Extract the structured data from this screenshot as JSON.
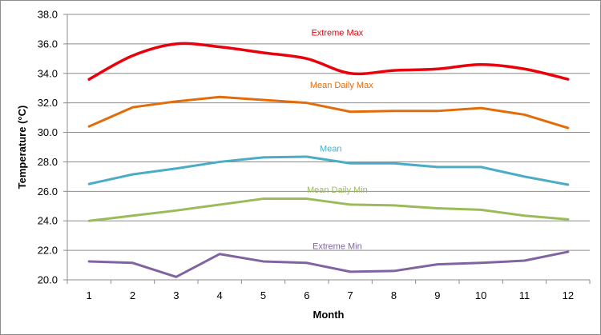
{
  "chart_data": {
    "type": "line",
    "title": "",
    "xlabel": "Month",
    "ylabel": "Temperature (°C)",
    "categories": [
      "1",
      "2",
      "3",
      "4",
      "5",
      "6",
      "7",
      "8",
      "9",
      "10",
      "11",
      "12"
    ],
    "ylim": [
      20.0,
      38.0
    ],
    "yticks": [
      "20.0",
      "22.0",
      "24.0",
      "26.0",
      "28.0",
      "30.0",
      "32.0",
      "34.0",
      "36.0",
      "38.0"
    ],
    "grid": "horizontal",
    "legend": "none (series labelled inline)",
    "series": [
      {
        "name": "Extreme Max",
        "color": "#e8000b",
        "smooth": true,
        "values": [
          33.6,
          35.2,
          36.0,
          35.8,
          35.4,
          35.0,
          34.0,
          34.2,
          34.3,
          34.6,
          34.3,
          33.6
        ]
      },
      {
        "name": "Mean Daily Max",
        "color": "#e36c0a",
        "smooth": false,
        "values": [
          30.4,
          31.7,
          32.1,
          32.4,
          32.2,
          32.0,
          31.4,
          31.45,
          31.45,
          31.65,
          31.2,
          30.3
        ]
      },
      {
        "name": "Mean",
        "color": "#4bacc6",
        "smooth": false,
        "values": [
          26.5,
          27.15,
          27.55,
          28.0,
          28.3,
          28.35,
          27.9,
          27.9,
          27.65,
          27.65,
          27.0,
          26.45
        ]
      },
      {
        "name": "Mean Daily Min",
        "color": "#9bbb59",
        "smooth": false,
        "values": [
          24.0,
          24.35,
          24.7,
          25.1,
          25.5,
          25.5,
          25.1,
          25.05,
          24.85,
          24.75,
          24.35,
          24.1
        ]
      },
      {
        "name": "Extreme Min",
        "color": "#8064a2",
        "smooth": false,
        "values": [
          21.25,
          21.15,
          20.2,
          21.75,
          21.25,
          21.15,
          20.55,
          20.6,
          21.05,
          21.15,
          21.3,
          21.9
        ]
      }
    ]
  }
}
